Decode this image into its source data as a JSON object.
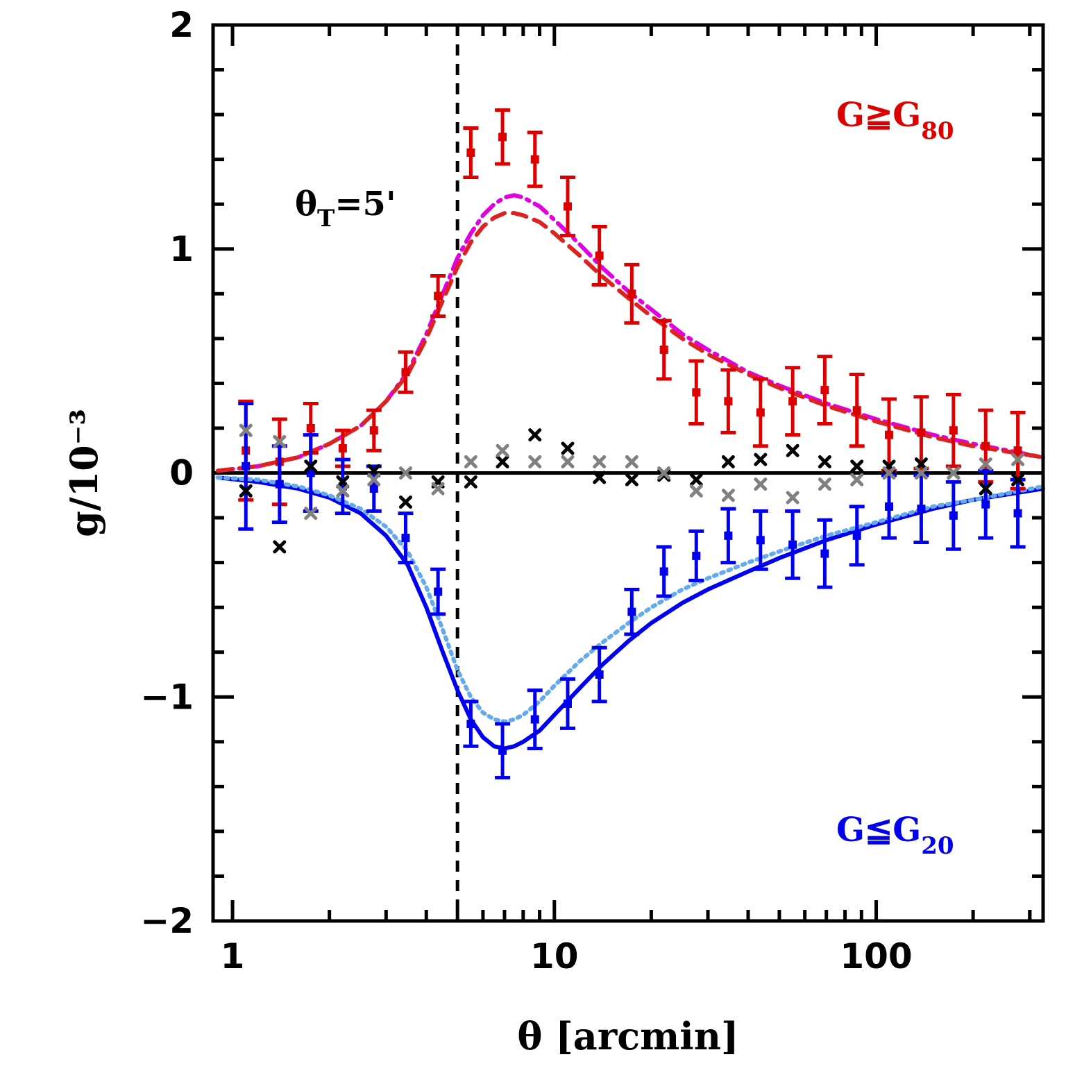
{
  "chart_data": {
    "type": "scatter",
    "xlabel": "θ [arcmin]",
    "ylabel": "g/10⁻³",
    "x_scale": "log",
    "xlim": [
      0.87,
      330
    ],
    "ylim": [
      -2,
      2
    ],
    "x_ticks": [
      1,
      10,
      100
    ],
    "x_tick_labels": [
      "1",
      "10",
      "100"
    ],
    "y_ticks": [
      -2,
      -1,
      0,
      1,
      2
    ],
    "y_tick_labels": [
      "−2",
      "−1",
      "0",
      "1",
      "2"
    ],
    "grid": false,
    "reference_lines": [
      {
        "axis": "y",
        "value": 0,
        "style": "solid",
        "color": "#000000"
      },
      {
        "axis": "x",
        "value": 5,
        "style": "dashed",
        "color": "#000000"
      }
    ],
    "annotations": [
      {
        "text": "θ",
        "sub": "T",
        "rest": "=5'",
        "color": "#000000",
        "position": "upper-left of dashed line"
      },
      {
        "text": "G≧G",
        "sub": "80",
        "color": "#dd0000",
        "position": "top-right"
      },
      {
        "text": "G≦G",
        "sub": "20",
        "color": "#0000ee",
        "position": "bottom-right"
      }
    ],
    "series": [
      {
        "marker": "square",
        "color": "#dd0000",
        "points": [
          {
            "x": 1.1,
            "y": 0.1,
            "err": 0.22
          },
          {
            "x": 1.4,
            "y": 0.05,
            "err": 0.19
          },
          {
            "x": 1.75,
            "y": 0.2,
            "err": 0.11
          },
          {
            "x": 2.2,
            "y": 0.11,
            "err": 0.08
          },
          {
            "x": 2.75,
            "y": 0.19,
            "err": 0.09
          },
          {
            "x": 3.45,
            "y": 0.45,
            "err": 0.09
          },
          {
            "x": 4.35,
            "y": 0.79,
            "err": 0.09
          },
          {
            "x": 5.5,
            "y": 1.43,
            "err": 0.11
          },
          {
            "x": 6.9,
            "y": 1.5,
            "err": 0.12
          },
          {
            "x": 8.7,
            "y": 1.4,
            "err": 0.12
          },
          {
            "x": 11.0,
            "y": 1.19,
            "err": 0.13
          },
          {
            "x": 13.8,
            "y": 0.97,
            "err": 0.13
          },
          {
            "x": 17.4,
            "y": 0.8,
            "err": 0.13
          },
          {
            "x": 21.9,
            "y": 0.55,
            "err": 0.13
          },
          {
            "x": 27.6,
            "y": 0.36,
            "err": 0.14
          },
          {
            "x": 34.7,
            "y": 0.32,
            "err": 0.14
          },
          {
            "x": 43.7,
            "y": 0.27,
            "err": 0.15
          },
          {
            "x": 55.0,
            "y": 0.32,
            "err": 0.15
          },
          {
            "x": 69.2,
            "y": 0.37,
            "err": 0.15
          },
          {
            "x": 87.1,
            "y": 0.28,
            "err": 0.16
          },
          {
            "x": 109.6,
            "y": 0.17,
            "err": 0.16
          },
          {
            "x": 138.0,
            "y": 0.18,
            "err": 0.16
          },
          {
            "x": 173.8,
            "y": 0.19,
            "err": 0.16
          },
          {
            "x": 218.8,
            "y": 0.12,
            "err": 0.16
          },
          {
            "x": 275.4,
            "y": 0.1,
            "err": 0.17
          }
        ]
      },
      {
        "marker": "square",
        "color": "#0000ee",
        "points": [
          {
            "x": 1.1,
            "y": 0.03,
            "err": 0.28
          },
          {
            "x": 1.4,
            "y": -0.05,
            "err": 0.17
          },
          {
            "x": 1.75,
            "y": 0.0,
            "err": 0.17
          },
          {
            "x": 2.2,
            "y": -0.06,
            "err": 0.12
          },
          {
            "x": 2.75,
            "y": -0.07,
            "err": 0.1
          },
          {
            "x": 3.45,
            "y": -0.29,
            "err": 0.11
          },
          {
            "x": 4.35,
            "y": -0.53,
            "err": 0.1
          },
          {
            "x": 5.5,
            "y": -1.12,
            "err": 0.1
          },
          {
            "x": 6.9,
            "y": -1.24,
            "err": 0.12
          },
          {
            "x": 8.7,
            "y": -1.1,
            "err": 0.13
          },
          {
            "x": 11.0,
            "y": -1.03,
            "err": 0.11
          },
          {
            "x": 13.8,
            "y": -0.9,
            "err": 0.12
          },
          {
            "x": 17.4,
            "y": -0.62,
            "err": 0.1
          },
          {
            "x": 21.9,
            "y": -0.44,
            "err": 0.11
          },
          {
            "x": 27.6,
            "y": -0.37,
            "err": 0.11
          },
          {
            "x": 34.7,
            "y": -0.28,
            "err": 0.12
          },
          {
            "x": 43.7,
            "y": -0.3,
            "err": 0.13
          },
          {
            "x": 55.0,
            "y": -0.32,
            "err": 0.15
          },
          {
            "x": 69.2,
            "y": -0.36,
            "err": 0.15
          },
          {
            "x": 87.1,
            "y": -0.28,
            "err": 0.13
          },
          {
            "x": 109.6,
            "y": -0.15,
            "err": 0.14
          },
          {
            "x": 138.0,
            "y": -0.16,
            "err": 0.15
          },
          {
            "x": 173.8,
            "y": -0.19,
            "err": 0.15
          },
          {
            "x": 218.8,
            "y": -0.14,
            "err": 0.15
          },
          {
            "x": 275.4,
            "y": -0.18,
            "err": 0.15
          }
        ]
      },
      {
        "marker": "x",
        "color": "#000000",
        "points": [
          {
            "x": 1.1,
            "y": -0.08
          },
          {
            "x": 1.4,
            "y": -0.33
          },
          {
            "x": 1.75,
            "y": 0.03
          },
          {
            "x": 2.2,
            "y": -0.04
          },
          {
            "x": 2.75,
            "y": 0.01
          },
          {
            "x": 3.45,
            "y": -0.13
          },
          {
            "x": 4.35,
            "y": -0.04
          },
          {
            "x": 5.5,
            "y": -0.04
          },
          {
            "x": 6.9,
            "y": 0.05
          },
          {
            "x": 8.7,
            "y": 0.17
          },
          {
            "x": 11.0,
            "y": 0.11
          },
          {
            "x": 13.8,
            "y": -0.02
          },
          {
            "x": 17.4,
            "y": -0.03
          },
          {
            "x": 21.9,
            "y": -0.01
          },
          {
            "x": 27.6,
            "y": -0.03
          },
          {
            "x": 34.7,
            "y": 0.05
          },
          {
            "x": 43.7,
            "y": 0.06
          },
          {
            "x": 55.0,
            "y": 0.1
          },
          {
            "x": 69.2,
            "y": 0.05
          },
          {
            "x": 87.1,
            "y": 0.03
          },
          {
            "x": 109.6,
            "y": 0.03
          },
          {
            "x": 138.0,
            "y": 0.04
          },
          {
            "x": 173.8,
            "y": 0.0
          },
          {
            "x": 218.8,
            "y": -0.07
          },
          {
            "x": 275.4,
            "y": -0.03
          }
        ]
      },
      {
        "marker": "x",
        "color": "#808080",
        "points": [
          {
            "x": 1.1,
            "y": 0.19
          },
          {
            "x": 1.4,
            "y": 0.14
          },
          {
            "x": 1.75,
            "y": -0.18
          },
          {
            "x": 2.2,
            "y": -0.08
          },
          {
            "x": 2.75,
            "y": -0.03
          },
          {
            "x": 3.45,
            "y": 0.0
          },
          {
            "x": 4.35,
            "y": -0.07
          },
          {
            "x": 5.5,
            "y": 0.05
          },
          {
            "x": 6.9,
            "y": 0.1
          },
          {
            "x": 8.7,
            "y": 0.05
          },
          {
            "x": 11.0,
            "y": 0.05
          },
          {
            "x": 13.8,
            "y": 0.05
          },
          {
            "x": 17.4,
            "y": 0.05
          },
          {
            "x": 21.9,
            "y": 0.0
          },
          {
            "x": 27.6,
            "y": -0.08
          },
          {
            "x": 34.7,
            "y": -0.1
          },
          {
            "x": 43.7,
            "y": -0.05
          },
          {
            "x": 55.0,
            "y": -0.11
          },
          {
            "x": 69.2,
            "y": -0.05
          },
          {
            "x": 87.1,
            "y": -0.03
          },
          {
            "x": 109.6,
            "y": 0.0
          },
          {
            "x": 138.0,
            "y": 0.0
          },
          {
            "x": 173.8,
            "y": 0.0
          },
          {
            "x": 218.8,
            "y": 0.04
          },
          {
            "x": 275.4,
            "y": 0.06
          }
        ]
      },
      {
        "marker": "none",
        "line": "dash-dot",
        "color": "#e000e0",
        "x": [
          0.9,
          1.2,
          1.6,
          2.0,
          2.5,
          3.0,
          3.5,
          4.0,
          4.5,
          5.0,
          5.5,
          6.0,
          6.5,
          7.0,
          7.5,
          8.0,
          9.0,
          10,
          12,
          14,
          17,
          20,
          25,
          30,
          40,
          50,
          70,
          100,
          150,
          200,
          330
        ],
        "y": [
          0.01,
          0.03,
          0.07,
          0.13,
          0.21,
          0.32,
          0.45,
          0.62,
          0.8,
          0.96,
          1.07,
          1.15,
          1.2,
          1.23,
          1.24,
          1.23,
          1.19,
          1.13,
          1.02,
          0.92,
          0.81,
          0.73,
          0.62,
          0.55,
          0.45,
          0.39,
          0.31,
          0.24,
          0.17,
          0.13,
          0.07
        ]
      },
      {
        "marker": "none",
        "line": "dashed",
        "color": "#dd2222",
        "x": [
          0.9,
          1.2,
          1.6,
          2.0,
          2.5,
          3.0,
          3.5,
          4.0,
          4.5,
          5.0,
          5.5,
          6.0,
          6.5,
          7.0,
          7.5,
          8.0,
          9.0,
          10,
          12,
          14,
          17,
          20,
          25,
          30,
          40,
          50,
          70,
          100,
          150,
          200,
          330
        ],
        "y": [
          0.01,
          0.03,
          0.07,
          0.13,
          0.21,
          0.32,
          0.44,
          0.6,
          0.77,
          0.92,
          1.03,
          1.1,
          1.14,
          1.16,
          1.16,
          1.15,
          1.12,
          1.07,
          0.97,
          0.88,
          0.78,
          0.7,
          0.6,
          0.53,
          0.44,
          0.38,
          0.3,
          0.23,
          0.16,
          0.12,
          0.07
        ]
      },
      {
        "marker": "none",
        "line": "solid",
        "color": "#0000ee",
        "x": [
          0.9,
          1.2,
          1.6,
          2.0,
          2.5,
          3.0,
          3.5,
          4.0,
          4.5,
          5.0,
          5.5,
          6.0,
          6.5,
          7.0,
          7.5,
          8.0,
          9.0,
          10,
          12,
          14,
          17,
          20,
          25,
          30,
          40,
          50,
          70,
          100,
          150,
          200,
          330
        ],
        "y": [
          -0.02,
          -0.04,
          -0.07,
          -0.11,
          -0.18,
          -0.28,
          -0.41,
          -0.6,
          -0.8,
          -0.97,
          -1.1,
          -1.18,
          -1.22,
          -1.23,
          -1.22,
          -1.2,
          -1.15,
          -1.08,
          -0.96,
          -0.86,
          -0.75,
          -0.67,
          -0.58,
          -0.52,
          -0.44,
          -0.38,
          -0.3,
          -0.23,
          -0.16,
          -0.12,
          -0.07
        ]
      },
      {
        "marker": "none",
        "line": "dotted",
        "color": "#66aaee",
        "x": [
          0.9,
          1.2,
          1.6,
          2.0,
          2.5,
          3.0,
          3.5,
          4.0,
          4.5,
          5.0,
          5.5,
          6.0,
          6.5,
          7.0,
          7.5,
          8.0,
          9.0,
          10,
          12,
          14,
          17,
          20,
          25,
          30,
          40,
          50,
          70,
          100,
          150,
          200,
          330
        ],
        "y": [
          -0.02,
          -0.03,
          -0.06,
          -0.1,
          -0.16,
          -0.24,
          -0.35,
          -0.51,
          -0.7,
          -0.88,
          -1.0,
          -1.07,
          -1.1,
          -1.11,
          -1.1,
          -1.08,
          -1.02,
          -0.95,
          -0.84,
          -0.76,
          -0.67,
          -0.6,
          -0.52,
          -0.47,
          -0.4,
          -0.35,
          -0.28,
          -0.22,
          -0.15,
          -0.12,
          -0.06
        ]
      }
    ]
  }
}
